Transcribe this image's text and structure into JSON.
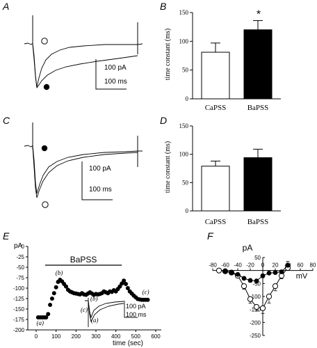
{
  "chart_data": [
    {
      "panel": "A",
      "type": "line",
      "description_free": true,
      "markers": [
        "open-circle",
        "filled-circle"
      ],
      "scale_bar": {
        "current": "100 pA",
        "time": "100 ms"
      }
    },
    {
      "panel": "B",
      "type": "bar",
      "categories": [
        "CaPSS",
        "BaPSS"
      ],
      "values": [
        81,
        120
      ],
      "errors": [
        16,
        16
      ],
      "fills": [
        "#ffffff",
        "#000000"
      ],
      "ylabel": "time constant (ms)",
      "ylim": [
        0,
        150
      ],
      "yticks": [
        0,
        50,
        100,
        150
      ],
      "annotation": "*"
    },
    {
      "panel": "C",
      "type": "line",
      "markers": [
        "filled-circle",
        "open-circle"
      ],
      "scale_bar": {
        "current": "100 pA",
        "time": "100 ms"
      }
    },
    {
      "panel": "D",
      "type": "bar",
      "categories": [
        "CaPSS",
        "BaPSS"
      ],
      "values": [
        79,
        94
      ],
      "errors": [
        9,
        15
      ],
      "fills": [
        "#ffffff",
        "#000000"
      ],
      "ylabel": "time constant (ms)",
      "ylim": [
        0,
        150
      ],
      "yticks": [
        0,
        50,
        100,
        150
      ]
    },
    {
      "panel": "E",
      "type": "scatter",
      "ylabel": "pA",
      "xlabel": "time (sec)",
      "xlim": [
        0,
        600
      ],
      "ylim": [
        -200,
        0
      ],
      "xticks": [
        0,
        100,
        200,
        300,
        400,
        500,
        600
      ],
      "yticks": [
        0,
        -25,
        -50,
        -75,
        -100,
        -125,
        -150,
        -175,
        -200
      ],
      "bar_label": "BaPSS",
      "bar_range": [
        45,
        430
      ],
      "x": [
        10,
        20,
        30,
        40,
        50,
        60,
        70,
        80,
        90,
        100,
        110,
        120,
        130,
        140,
        150,
        160,
        170,
        180,
        190,
        200,
        210,
        220,
        230,
        240,
        250,
        260,
        270,
        280,
        290,
        300,
        310,
        320,
        330,
        340,
        350,
        360,
        370,
        380,
        390,
        400,
        410,
        420,
        430,
        440,
        450,
        460,
        470,
        480,
        490,
        500,
        510,
        520,
        530,
        540,
        550,
        560
      ],
      "y": [
        -170,
        -170,
        -170,
        -170,
        -170,
        -162,
        -140,
        -125,
        -112,
        -98,
        -85,
        -80,
        -84,
        -90,
        -96,
        -104,
        -108,
        -110,
        -112,
        -113,
        -114,
        -115,
        -112,
        -115,
        -116,
        -113,
        -110,
        -113,
        -116,
        -114,
        -115,
        -114,
        -112,
        -108,
        -110,
        -112,
        -108,
        -109,
        -105,
        -108,
        -102,
        -96,
        -89,
        -82,
        -90,
        -100,
        -108,
        -113,
        -118,
        -122,
        -126,
        -127,
        -128,
        -128,
        -128,
        -128
      ],
      "point_labels": [
        {
          "text": "(a)",
          "x": 20,
          "y": -188
        },
        {
          "text": "(b)",
          "x": 115,
          "y": -68
        },
        {
          "text": "(c)",
          "x": 550,
          "y": -114
        }
      ],
      "inset": {
        "labels": [
          "(b)",
          "(c)",
          "(a)"
        ],
        "scale_bar": {
          "current": "100 pA",
          "time": "100 ms"
        }
      }
    },
    {
      "panel": "F",
      "type": "line",
      "ylabel": "pA",
      "xlabel": "mV",
      "xlim": [
        -80,
        80
      ],
      "ylim": [
        -250,
        50
      ],
      "xticks": [
        -80,
        -60,
        -40,
        -20,
        0,
        20,
        40,
        60,
        80
      ],
      "yticks": [
        50,
        0,
        -50,
        -100,
        -150,
        -200,
        -250
      ],
      "series": [
        {
          "marker": "open-circle",
          "x": [
            -70,
            -60,
            -50,
            -40,
            -30,
            -20,
            -10,
            0,
            10,
            20,
            30,
            40
          ],
          "y": [
            0,
            -3,
            -8,
            -20,
            -60,
            -110,
            -140,
            -145,
            -100,
            -60,
            -20,
            10
          ],
          "err": [
            0,
            3,
            4,
            8,
            12,
            16,
            16,
            20,
            25,
            18,
            12,
            10
          ]
        },
        {
          "marker": "filled-circle",
          "x": [
            -60,
            -50,
            -40,
            -30,
            -20,
            -10,
            0,
            10,
            20,
            30,
            40
          ],
          "y": [
            -3,
            -8,
            -15,
            -30,
            -38,
            -40,
            -20,
            -10,
            -8,
            -5,
            20
          ],
          "err": [
            3,
            4,
            5,
            6,
            7,
            7,
            8,
            6,
            5,
            4,
            15
          ]
        }
      ]
    }
  ],
  "panel_letters": [
    "A",
    "B",
    "C",
    "D",
    "E",
    "F"
  ],
  "labels": {
    "pA_100": "100 pA",
    "ms_100": "100 ms",
    "capss": "CaPSS",
    "bapss": "BaPSS",
    "tc": "time constant (ms)",
    "star": "*"
  }
}
